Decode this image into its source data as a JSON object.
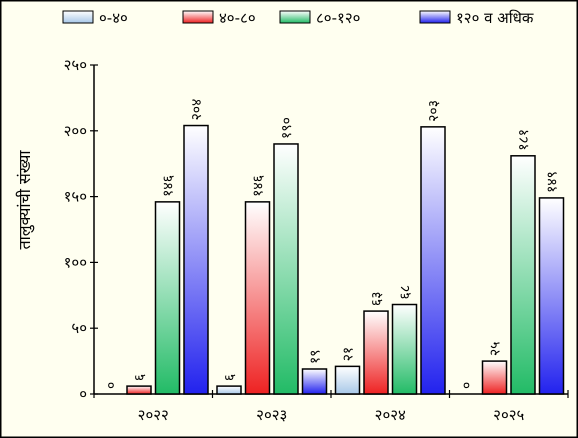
{
  "chart_data": {
    "type": "bar",
    "title": "",
    "xlabel": "",
    "ylabel": "तालुक्यांची संख्या",
    "ylim": [
      0,
      250
    ],
    "yticks": [
      0,
      50,
      100,
      150,
      200,
      250
    ],
    "ytick_labels": [
      "०",
      "५०",
      "१००",
      "१५०",
      "२००",
      "२५०"
    ],
    "grid": false,
    "legend_position": "top",
    "categories": [
      "२०२२",
      "२०२३",
      "२०२४",
      "२०२५"
    ],
    "series": [
      {
        "name": "०-४०",
        "color": "#a8c8e8",
        "values": [
          0,
          6,
          21,
          0
        ],
        "labels": [
          "०",
          "६",
          "२१",
          "०"
        ]
      },
      {
        "name": "४०-८०",
        "color": "#ee2222",
        "values": [
          6,
          146,
          63,
          25
        ],
        "labels": [
          "६",
          "१४६",
          "६३",
          "२५"
        ]
      },
      {
        "name": "८०-१२०",
        "color": "#22bb66",
        "values": [
          146,
          190,
          68,
          181
        ],
        "labels": [
          "१४६",
          "१९०",
          "६८",
          "१८१"
        ]
      },
      {
        "name": "१२० व अधिक",
        "color": "#2222ee",
        "values": [
          204,
          19,
          203,
          149
        ],
        "labels": [
          "२०४",
          "१९",
          "२०३",
          "१४९"
        ]
      }
    ]
  }
}
